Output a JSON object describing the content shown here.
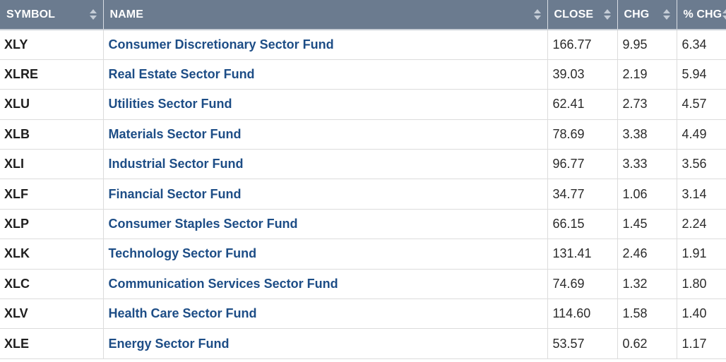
{
  "columns": {
    "symbol": "SYMBOL",
    "name": "NAME",
    "close": "CLOSE",
    "chg": "CHG",
    "pct_chg": "% CHG"
  },
  "icons": {
    "sort": "sort-arrows-icon"
  },
  "colors": {
    "header_bg": "#6b7b8f",
    "link": "#1d4d86"
  },
  "rows": [
    {
      "symbol": "XLY",
      "name": "Consumer Discretionary Sector Fund",
      "close": "166.77",
      "chg": "9.95",
      "pct_chg": "6.34"
    },
    {
      "symbol": "XLRE",
      "name": "Real Estate Sector Fund",
      "close": "39.03",
      "chg": "2.19",
      "pct_chg": "5.94"
    },
    {
      "symbol": "XLU",
      "name": "Utilities Sector Fund",
      "close": "62.41",
      "chg": "2.73",
      "pct_chg": "4.57"
    },
    {
      "symbol": "XLB",
      "name": "Materials Sector Fund",
      "close": "78.69",
      "chg": "3.38",
      "pct_chg": "4.49"
    },
    {
      "symbol": "XLI",
      "name": "Industrial Sector Fund",
      "close": "96.77",
      "chg": "3.33",
      "pct_chg": "3.56"
    },
    {
      "symbol": "XLF",
      "name": "Financial Sector Fund",
      "close": "34.77",
      "chg": "1.06",
      "pct_chg": "3.14"
    },
    {
      "symbol": "XLP",
      "name": "Consumer Staples Sector Fund",
      "close": "66.15",
      "chg": "1.45",
      "pct_chg": "2.24"
    },
    {
      "symbol": "XLK",
      "name": "Technology Sector Fund",
      "close": "131.41",
      "chg": "2.46",
      "pct_chg": "1.91"
    },
    {
      "symbol": "XLC",
      "name": "Communication Services Sector Fund",
      "close": "74.69",
      "chg": "1.32",
      "pct_chg": "1.80"
    },
    {
      "symbol": "XLV",
      "name": "Health Care Sector Fund",
      "close": "114.60",
      "chg": "1.58",
      "pct_chg": "1.40"
    },
    {
      "symbol": "XLE",
      "name": "Energy Sector Fund",
      "close": "53.57",
      "chg": "0.62",
      "pct_chg": "1.17"
    }
  ]
}
